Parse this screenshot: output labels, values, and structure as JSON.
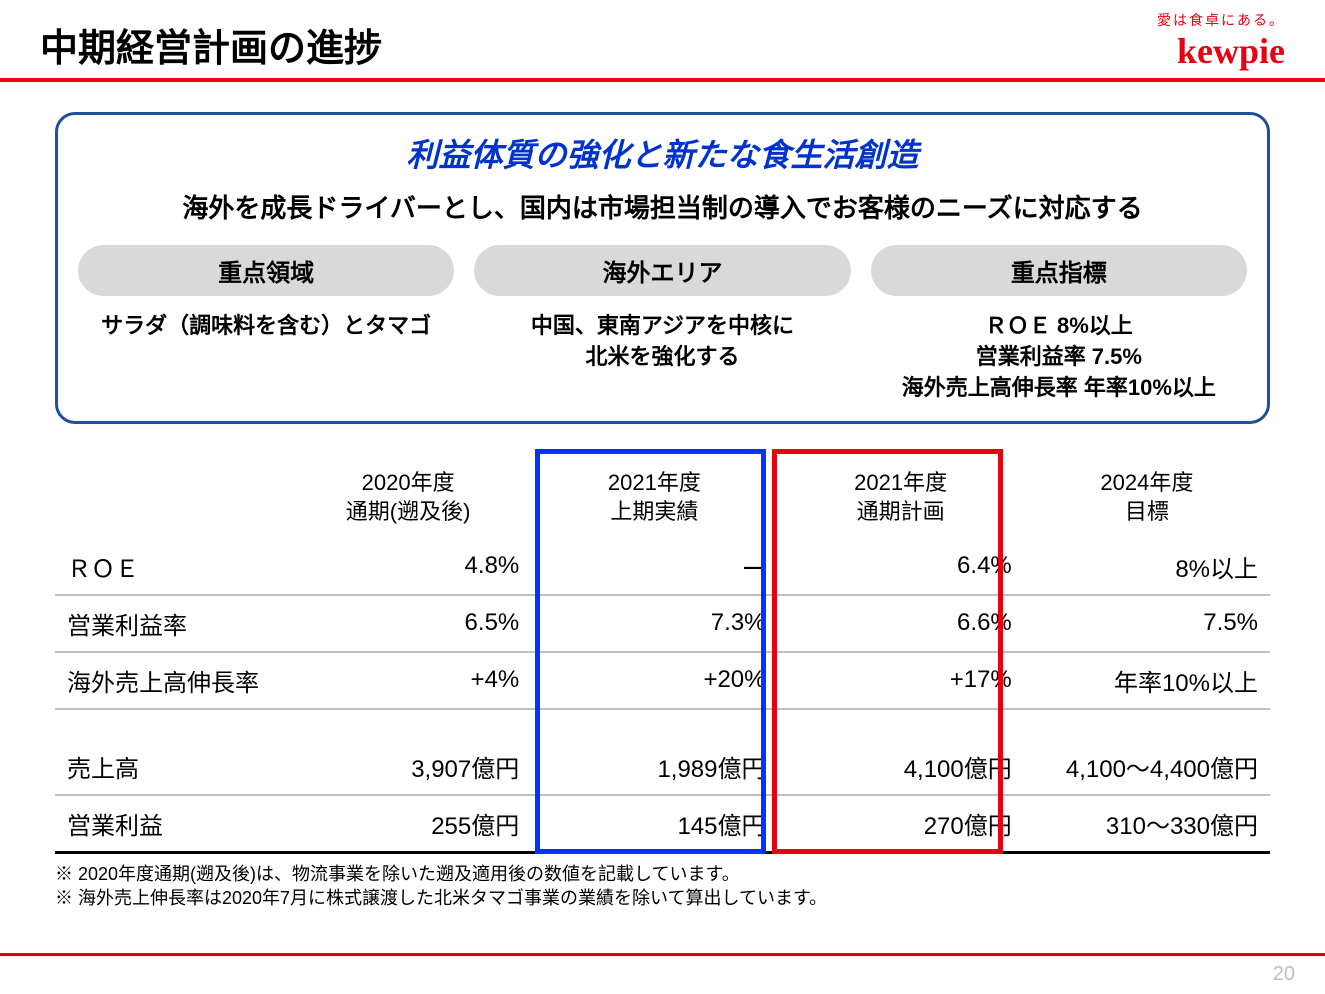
{
  "header": {
    "title": "中期経営計画の進捗",
    "tagline": "愛は食卓にある。",
    "brand": "kewpie"
  },
  "strategy": {
    "title": "利益体質の強化と新たな食生活創造",
    "subtitle": "海外を成長ドライバーとし、国内は市場担当制の導入でお客様のニーズに対応する",
    "pills": [
      "重点領域",
      "海外エリア",
      "重点指標"
    ],
    "contents": [
      "サラダ（調味料を含む）とタマゴ",
      "中国、東南アジアを中核に\n北米を強化する",
      "ＲＯＥ 8%以上\n営業利益率 7.5%\n海外売上高伸長率 年率10%以上"
    ]
  },
  "table": {
    "headers": [
      "",
      "2020年度\n通期(遡及後)",
      "2021年度\n上期実績",
      "2021年度\n通期計画",
      "2024年度\n目標"
    ],
    "rows": [
      {
        "label": "ＲＯＥ",
        "cells": [
          "4.8%",
          "ー",
          "6.4%",
          "8%以上"
        ]
      },
      {
        "label": "営業利益率",
        "cells": [
          "6.5%",
          "7.3%",
          "6.6%",
          "7.5%"
        ]
      },
      {
        "label": "海外売上高伸長率",
        "cells": [
          "+4%",
          "+20%",
          "+17%",
          "年率10%以上"
        ]
      }
    ],
    "rows2": [
      {
        "label": "売上高",
        "cells": [
          "3,907億円",
          "1,989億円",
          "4,100億円",
          "4,100～4,400億円"
        ]
      },
      {
        "label": "営業利益",
        "cells": [
          "255億円",
          "145億円",
          "270億円",
          "310～330億円"
        ]
      }
    ],
    "highlight_blue": {
      "left_pct": 39.5,
      "width_pct": 19
    },
    "highlight_red": {
      "left_pct": 59,
      "width_pct": 19
    },
    "border_color": "#bfbfbf"
  },
  "footnotes": [
    "※ 2020年度通期(遡及後)は、物流事業を除いた遡及適用後の数値を記載しています。",
    "※ 海外売上伸長率は2020年7月に株式譲渡した北米タマゴ事業の業績を除いて算出しています。"
  ],
  "page_number": "20",
  "colors": {
    "accent_red": "#e60012",
    "accent_blue": "#0033cc",
    "box_border": "#1f4e9c",
    "pill_bg": "#d9d9d9",
    "highlight_blue": "#0033ff",
    "highlight_red": "#e60012"
  }
}
